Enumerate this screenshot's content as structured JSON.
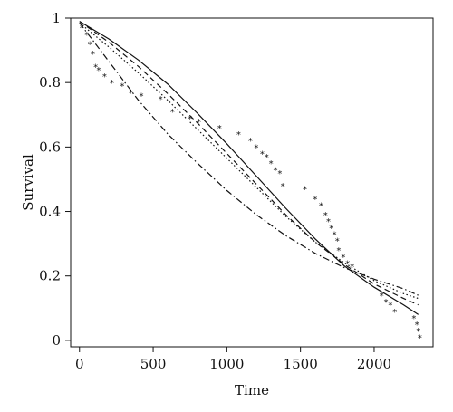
{
  "chart_data": {
    "type": "line",
    "title": "",
    "xlabel": "Time",
    "ylabel": "Survival",
    "xlim": [
      -60,
      2400
    ],
    "ylim": [
      -0.02,
      1.0
    ],
    "xticks": [
      0,
      500,
      1000,
      1500,
      2000
    ],
    "xtick_labels": [
      "0",
      "500",
      "1000",
      "1500",
      "2000"
    ],
    "yticks": [
      0,
      0.2,
      0.4,
      0.6,
      0.8,
      1
    ],
    "ytick_labels": [
      "0",
      "0.2",
      "0.4",
      "0.6",
      "0.8",
      "1"
    ],
    "grid": false,
    "legend": "none",
    "series": [
      {
        "style": "solid",
        "x": [
          0,
          200,
          400,
          600,
          800,
          1000,
          1200,
          1400,
          1600,
          1800,
          2000,
          2200,
          2300
        ],
        "y": [
          0.99,
          0.935,
          0.87,
          0.795,
          0.705,
          0.61,
          0.51,
          0.41,
          0.315,
          0.23,
          0.165,
          0.11,
          0.08
        ]
      },
      {
        "style": "dashed",
        "x": [
          0,
          200,
          400,
          600,
          800,
          1000,
          1200,
          1400,
          1600,
          1800,
          2000,
          2200,
          2300
        ],
        "y": [
          0.99,
          0.925,
          0.85,
          0.765,
          0.675,
          0.58,
          0.485,
          0.39,
          0.305,
          0.235,
          0.175,
          0.13,
          0.11
        ]
      },
      {
        "style": "dotted",
        "x": [
          0,
          200,
          400,
          600,
          800,
          1000,
          1200,
          1400,
          1600,
          1800,
          2000,
          2200,
          2300
        ],
        "y": [
          0.985,
          0.91,
          0.83,
          0.745,
          0.655,
          0.565,
          0.475,
          0.385,
          0.305,
          0.24,
          0.185,
          0.145,
          0.13
        ]
      },
      {
        "style": "dashdot",
        "x": [
          0,
          200,
          400,
          600,
          800,
          1000,
          1200,
          1400,
          1600,
          1800,
          2000,
          2200,
          2300
        ],
        "y": [
          0.985,
          0.865,
          0.745,
          0.64,
          0.55,
          0.465,
          0.39,
          0.325,
          0.27,
          0.225,
          0.19,
          0.16,
          0.14
        ]
      },
      {
        "style": "stars",
        "x": [
          15,
          50,
          70,
          90,
          110,
          130,
          170,
          220,
          290,
          350,
          420,
          550,
          630,
          750,
          810,
          950,
          1080,
          1160,
          1200,
          1240,
          1270,
          1300,
          1330,
          1360,
          1380,
          1530,
          1600,
          1640,
          1670,
          1690,
          1710,
          1730,
          1750,
          1760,
          1790,
          1820,
          1850,
          2050,
          2080,
          2110,
          2140,
          2270,
          2290,
          2300,
          2310
        ],
        "y": [
          0.97,
          0.95,
          0.92,
          0.89,
          0.85,
          0.84,
          0.82,
          0.8,
          0.79,
          0.77,
          0.76,
          0.75,
          0.71,
          0.69,
          0.68,
          0.66,
          0.64,
          0.62,
          0.6,
          0.58,
          0.57,
          0.55,
          0.53,
          0.52,
          0.48,
          0.47,
          0.44,
          0.42,
          0.39,
          0.37,
          0.35,
          0.33,
          0.31,
          0.28,
          0.26,
          0.24,
          0.23,
          0.14,
          0.12,
          0.11,
          0.09,
          0.07,
          0.05,
          0.03,
          0.01
        ]
      }
    ]
  }
}
